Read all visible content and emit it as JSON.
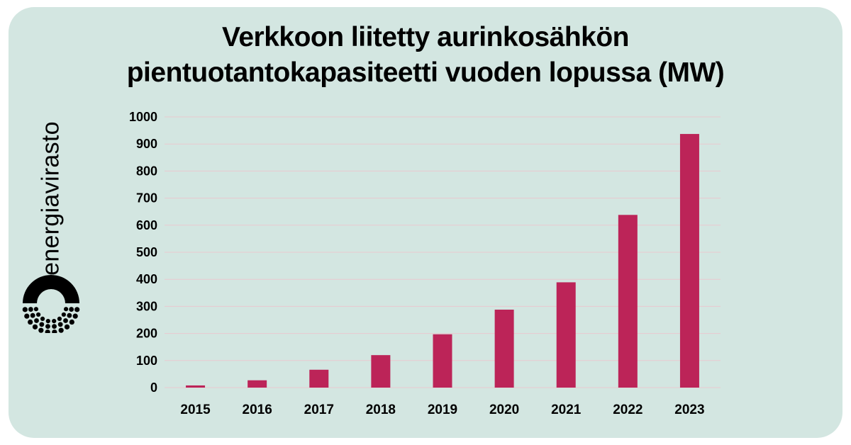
{
  "header": {
    "title_line1": "Verkkoon liitetty aurinkosähkön",
    "title_line2": "pientuotantokapasiteetti vuoden lopussa (MW)"
  },
  "brand": {
    "name": "energiavirasto",
    "logo_icon": "energiavirasto-logo-icon"
  },
  "colors": {
    "background": "#d3e6e1",
    "bar": "#bc2458",
    "grid": "#e9c9cf"
  },
  "chart_data": {
    "type": "bar",
    "title": "Verkkoon liitetty aurinkosähkön pientuotantokapasiteetti vuoden lopussa (MW)",
    "categories": [
      "2015",
      "2016",
      "2017",
      "2018",
      "2019",
      "2020",
      "2021",
      "2022",
      "2023"
    ],
    "values": [
      8,
      27,
      66,
      120,
      197,
      288,
      389,
      638,
      937
    ],
    "ylim": [
      0,
      1000
    ],
    "yticks": [
      0,
      100,
      200,
      300,
      400,
      500,
      600,
      700,
      800,
      900,
      1000
    ],
    "xlabel": "",
    "ylabel": "",
    "grid": true,
    "legend": "none"
  }
}
